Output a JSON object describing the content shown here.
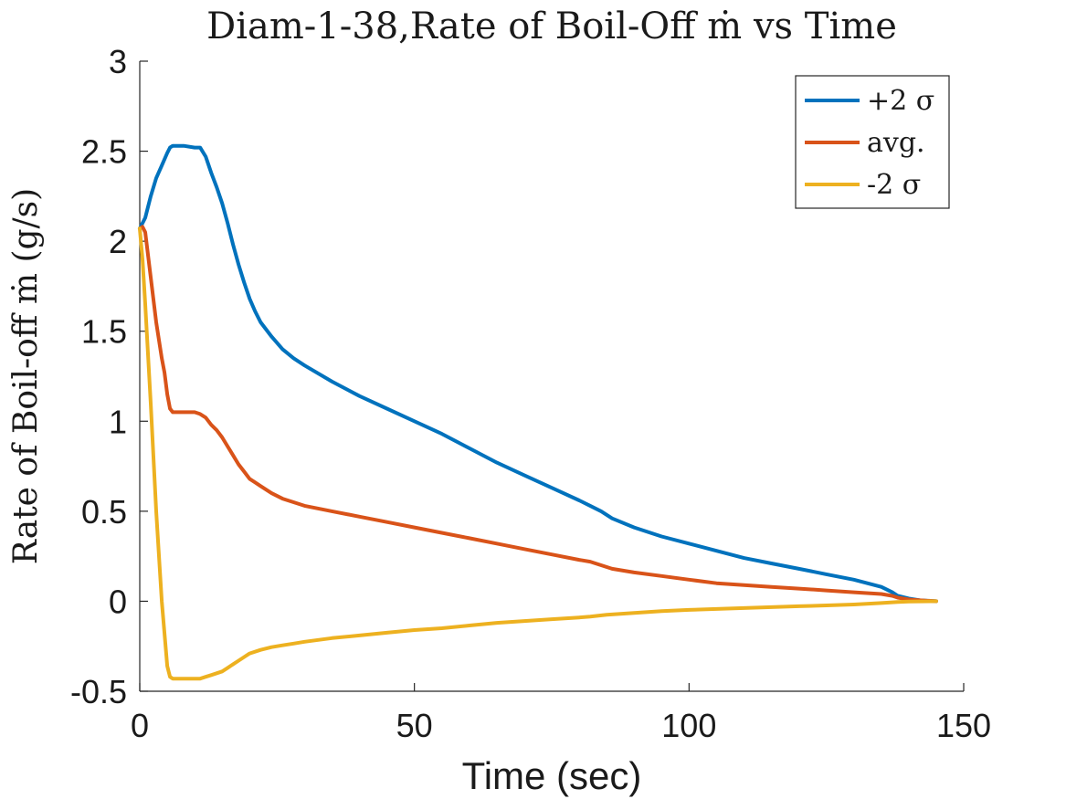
{
  "chart_data": {
    "type": "line",
    "title": "Diam-1-38,Rate of Boil-Off ṁ vs Time",
    "xlabel": "Time (sec)",
    "ylabel": "Rate of Boil-off ṁ (g/s)",
    "xlim": [
      0,
      150
    ],
    "ylim": [
      -0.5,
      3
    ],
    "xticks": [
      0,
      50,
      100,
      150
    ],
    "xtick_labels": [
      "0",
      "50",
      "100",
      "150"
    ],
    "yticks": [
      -0.5,
      0,
      0.5,
      1,
      1.5,
      2,
      2.5,
      3
    ],
    "ytick_labels": [
      "-0.5",
      "0",
      "0.5",
      "1",
      "1.5",
      "2",
      "2.5",
      "3"
    ],
    "grid": false,
    "legend_position": "top-right",
    "series": [
      {
        "name": "+2 σ",
        "color": "#0072BD",
        "x": [
          0,
          1,
          2,
          3,
          4,
          5,
          5.5,
          6,
          8,
          10,
          11,
          12,
          13,
          14,
          15,
          16,
          17,
          18,
          19,
          20,
          21,
          22,
          24,
          26,
          28,
          30,
          35,
          40,
          45,
          50,
          55,
          60,
          65,
          70,
          75,
          80,
          82,
          84,
          86,
          90,
          95,
          100,
          105,
          110,
          115,
          120,
          125,
          130,
          135,
          137,
          138,
          140,
          142,
          145
        ],
        "y": [
          2.07,
          2.13,
          2.25,
          2.35,
          2.42,
          2.49,
          2.52,
          2.53,
          2.53,
          2.52,
          2.52,
          2.47,
          2.38,
          2.3,
          2.21,
          2.1,
          1.98,
          1.87,
          1.77,
          1.68,
          1.61,
          1.55,
          1.47,
          1.4,
          1.35,
          1.31,
          1.22,
          1.14,
          1.07,
          1.0,
          0.93,
          0.85,
          0.77,
          0.7,
          0.63,
          0.56,
          0.53,
          0.5,
          0.46,
          0.41,
          0.36,
          0.32,
          0.28,
          0.24,
          0.21,
          0.18,
          0.15,
          0.12,
          0.08,
          0.05,
          0.03,
          0.015,
          0.005,
          0.0
        ]
      },
      {
        "name": "avg.",
        "color": "#D95319",
        "x": [
          0,
          0.5,
          1,
          2,
          3,
          4,
          4.5,
          5,
          5.5,
          6,
          8,
          10,
          11,
          12,
          13,
          14,
          15,
          16,
          17,
          18,
          19,
          20,
          21,
          22,
          24,
          26,
          28,
          30,
          35,
          40,
          45,
          50,
          55,
          60,
          65,
          70,
          75,
          80,
          82,
          84,
          86,
          90,
          95,
          100,
          105,
          110,
          115,
          120,
          125,
          130,
          135,
          137,
          138,
          140,
          142,
          145
        ],
        "y": [
          2.07,
          2.08,
          2.05,
          1.8,
          1.55,
          1.35,
          1.27,
          1.15,
          1.07,
          1.05,
          1.05,
          1.05,
          1.04,
          1.02,
          0.98,
          0.95,
          0.91,
          0.86,
          0.81,
          0.76,
          0.72,
          0.68,
          0.66,
          0.64,
          0.6,
          0.57,
          0.55,
          0.53,
          0.5,
          0.47,
          0.44,
          0.41,
          0.38,
          0.35,
          0.32,
          0.29,
          0.26,
          0.23,
          0.22,
          0.2,
          0.18,
          0.16,
          0.14,
          0.12,
          0.1,
          0.09,
          0.08,
          0.07,
          0.06,
          0.05,
          0.04,
          0.03,
          0.02,
          0.01,
          0.005,
          0.0
        ]
      },
      {
        "name": "-2 σ",
        "color": "#EDB120",
        "x": [
          0,
          0.5,
          1,
          2,
          3,
          4,
          5,
          5.5,
          6,
          8,
          10,
          11,
          12,
          13,
          14,
          15,
          16,
          17,
          18,
          19,
          20,
          22,
          24,
          26,
          28,
          30,
          35,
          40,
          45,
          50,
          55,
          60,
          65,
          70,
          75,
          80,
          82,
          85,
          90,
          95,
          100,
          105,
          110,
          115,
          120,
          125,
          130,
          135,
          138,
          140,
          145
        ],
        "y": [
          2.07,
          1.9,
          1.65,
          1.1,
          0.5,
          0.0,
          -0.36,
          -0.42,
          -0.43,
          -0.43,
          -0.43,
          -0.43,
          -0.42,
          -0.41,
          -0.4,
          -0.39,
          -0.37,
          -0.35,
          -0.33,
          -0.31,
          -0.29,
          -0.27,
          -0.255,
          -0.245,
          -0.235,
          -0.225,
          -0.205,
          -0.19,
          -0.175,
          -0.16,
          -0.15,
          -0.135,
          -0.12,
          -0.11,
          -0.1,
          -0.09,
          -0.085,
          -0.075,
          -0.065,
          -0.055,
          -0.048,
          -0.043,
          -0.038,
          -0.033,
          -0.028,
          -0.023,
          -0.018,
          -0.01,
          -0.004,
          -0.002,
          0.0
        ]
      }
    ]
  }
}
